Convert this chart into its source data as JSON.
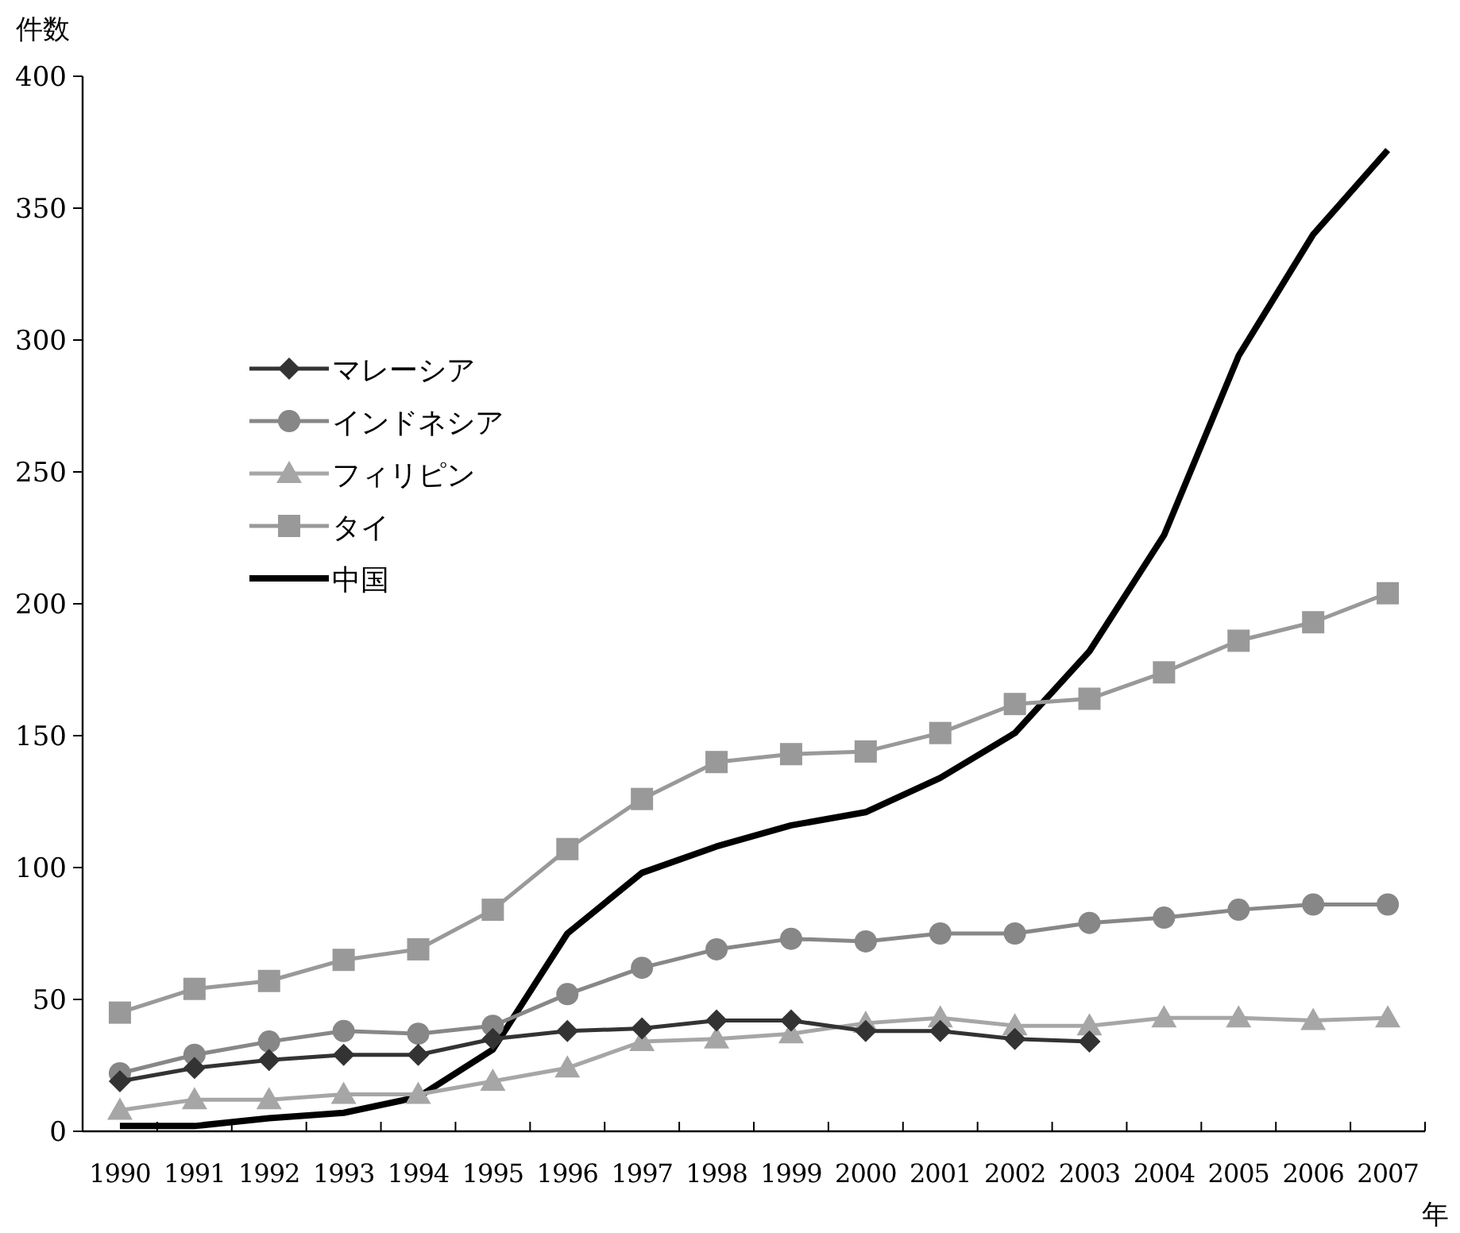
{
  "chart_data": {
    "type": "line",
    "ylabel": "件数",
    "xlabel": "年",
    "categories": [
      "1990",
      "1991",
      "1992",
      "1993",
      "1994",
      "1995",
      "1996",
      "1997",
      "1998",
      "1999",
      "2000",
      "2001",
      "2002",
      "2003",
      "2004",
      "2005",
      "2006",
      "2007"
    ],
    "ylim": [
      0,
      400
    ],
    "yticks": [
      0,
      50,
      100,
      150,
      200,
      250,
      300,
      350,
      400
    ],
    "grid": false,
    "legend": "top left",
    "series": [
      {
        "name": "マレーシア",
        "color": "#333333",
        "marker": "diamond",
        "values": [
          19,
          24,
          27,
          29,
          29,
          35,
          38,
          39,
          42,
          42,
          38,
          38,
          35,
          34,
          null,
          null,
          null,
          null
        ]
      },
      {
        "name": "インドネシア",
        "color": "#878787",
        "marker": "circle",
        "values": [
          22,
          29,
          34,
          38,
          37,
          40,
          52,
          62,
          69,
          73,
          72,
          75,
          75,
          79,
          81,
          84,
          86,
          86
        ]
      },
      {
        "name": "フィリピン",
        "color": "#a6a6a6",
        "marker": "triangle",
        "values": [
          8,
          12,
          12,
          14,
          14,
          19,
          24,
          34,
          35,
          37,
          41,
          43,
          40,
          40,
          43,
          43,
          42,
          43
        ]
      },
      {
        "name": "タイ",
        "color": "#999999",
        "marker": "square",
        "values": [
          45,
          54,
          57,
          65,
          69,
          84,
          107,
          126,
          140,
          143,
          144,
          151,
          162,
          164,
          174,
          186,
          193,
          204
        ]
      },
      {
        "name": "中国",
        "color": "#000000",
        "marker": "none",
        "values": [
          2,
          2,
          5,
          7,
          13,
          31,
          75,
          98,
          108,
          116,
          121,
          134,
          151,
          182,
          226,
          294,
          340,
          372
        ]
      }
    ]
  }
}
